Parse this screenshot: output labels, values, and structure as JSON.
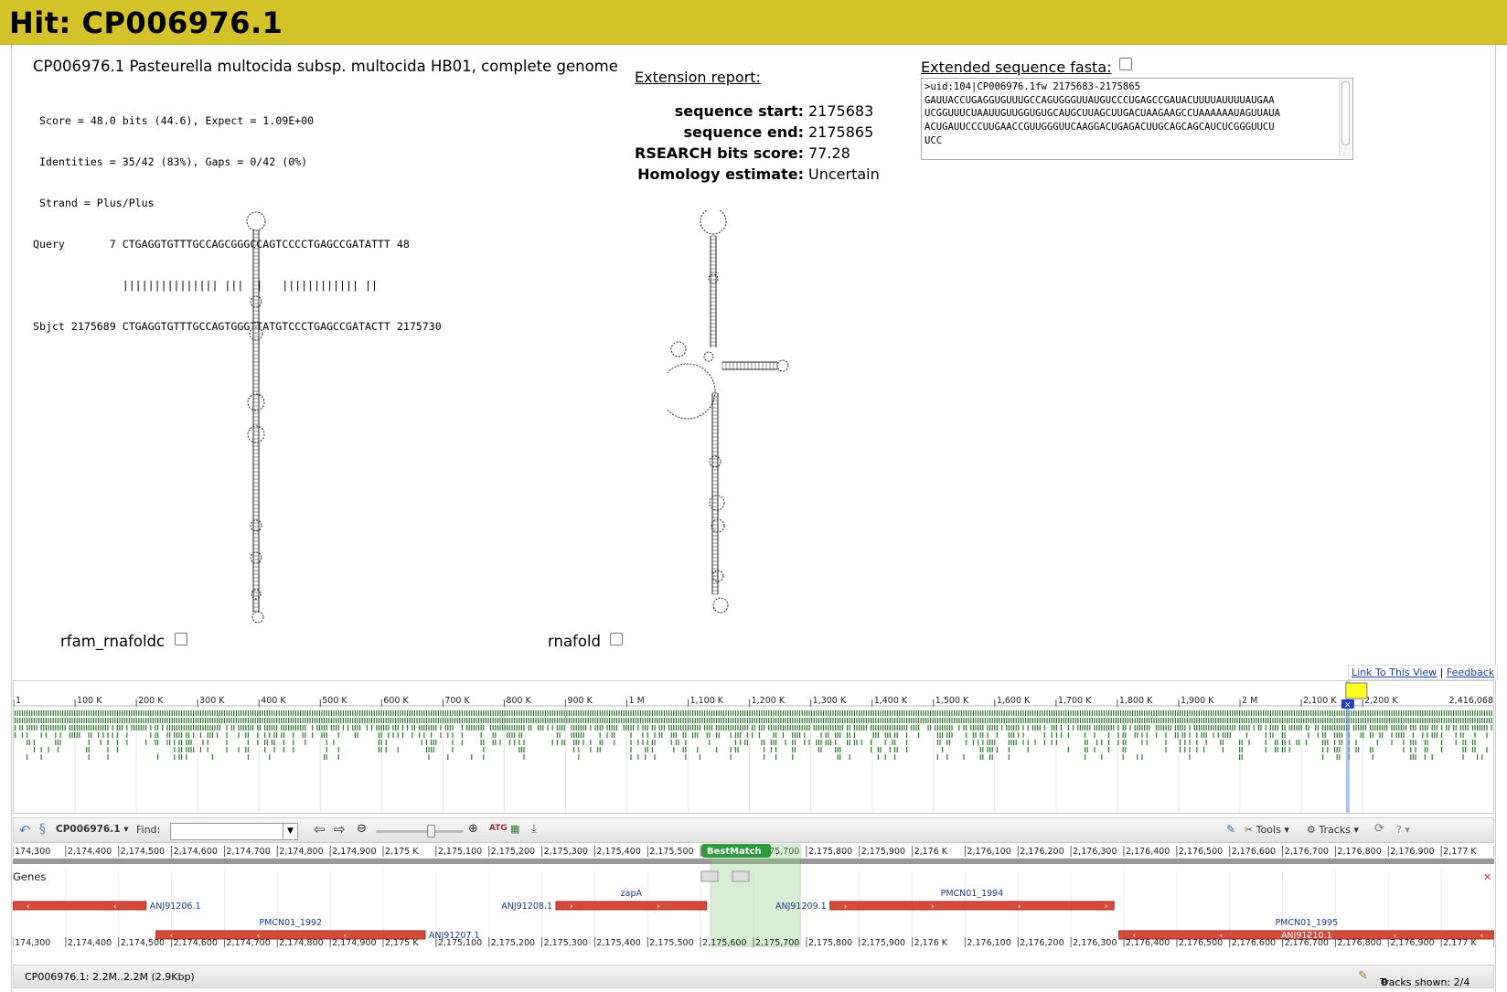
{
  "header": {
    "title": "Hit: CP006976.1"
  },
  "hit": {
    "description": "CP006976.1 Pasteurella multocida subsp. multocida HB01, complete genome",
    "alignment": [
      " Score = 48.0 bits (44.6), Expect = 1.09E+00",
      " Identities = 35/42 (83%), Gaps = 0/42 (0%)",
      " Strand = Plus/Plus",
      "Query       7 CTGAGGTGTTTGCCAGCGGGCCAGTCCCCTGAGCCGATATTT 48",
      "              ||||||||||||||| |||  |   |||||||||||| ||",
      "Sbjct 2175689 CTGAGGTGTTTGCCAGTGGGTTATGTCCCTGAGCCGATACTT 2175730"
    ]
  },
  "extension": {
    "title": "Extension report:",
    "rows": [
      {
        "key": "sequence start:",
        "value": "2175683"
      },
      {
        "key": "sequence end:",
        "value": "2175865"
      },
      {
        "key": "RSEARCH bits score:",
        "value": "77.28"
      },
      {
        "key": "Homology estimate:",
        "value": "Uncertain"
      }
    ]
  },
  "fasta": {
    "title": "Extended sequence fasta:",
    "text": ">uid:104|CP006976.1fw 2175683-2175865\nGAUUACCUGAGGUGUUUGCCAGUGGGUUAUGUCCCUGAGCCGAUACUUUUAUUUUAUGAA\nUCGGUUUCUAAUUGUUGGUGUGCAUGCUUAGCUUGACUAAGAAGCCUAAAAAAUAGUUAUA\nACUGAUUCCCUUGAACCGUUGGGUUCAAGGACUGAGACUUGCAGCAGCAUCUCGGGUUCU\nUCC"
  },
  "structures": [
    {
      "label": "rfam_rnafoldc"
    },
    {
      "label": "rnafold"
    }
  ],
  "links": {
    "link_view": "Link To This View",
    "feedback": "Feedback"
  },
  "overview": {
    "ticks": [
      "1",
      "100 K",
      "200 K",
      "300 K",
      "400 K",
      "500 K",
      "600 K",
      "700 K",
      "800 K",
      "900 K",
      "1 M",
      "1,100 K",
      "1,200 K",
      "1,300 K",
      "1,400 K",
      "1,500 K",
      "1,600 K",
      "1,700 K",
      "1,800 K",
      "1,900 K",
      "2 M",
      "2,100 K",
      "2,200 K"
    ],
    "end_label": "2,416,068",
    "genome_length": 2416068,
    "view_position": 2175700
  },
  "toolbar": {
    "ref": "CP006976.1",
    "find_label": "Find:",
    "tools": "Tools",
    "tracks": "Tracks"
  },
  "detail": {
    "ticks": [
      "174,300",
      "2,174,400",
      "2,174,500",
      "2,174,600",
      "2,174,700",
      "2,174,800",
      "2,174,900",
      "2,175 K",
      "2,175,100",
      "2,175,200",
      "2,175,300",
      "2,175,400",
      "2,175,500",
      "2,175,600",
      "2,175,700",
      "2,175,800",
      "2,175,900",
      "2,176 K",
      "2,176,100",
      "2,176,200",
      "2,176,300",
      "2,176,400",
      "2,176,500",
      "2,176,600",
      "2,176,700",
      "2,176,800",
      "2,176,900",
      "2,177 K",
      "2,1"
    ],
    "bottom_ticks": [
      "174,300",
      "2,174,400",
      "2,174,500",
      "2,174,600",
      "2,174,700",
      "2,174,800",
      "2,174,900",
      "2,175 K",
      "2,175,100",
      "2,175,200",
      "2,175,300",
      "2,175,400",
      "2,175,500",
      "2,175,600",
      "2,175,700",
      "2,175,800",
      "2,175,900",
      "2,176 K",
      "2,176,100",
      "2,176,200",
      "2,176,300",
      "2,176,400",
      "2,176,500",
      "2,176,600",
      "2,176,700",
      "2,176,800",
      "2,176,900",
      "2,177 K",
      "2,1"
    ],
    "view_start": 2174270,
    "view_end": 2177270,
    "best_match_label": "BestMatch",
    "best_match_range": [
      2175683,
      2175865
    ],
    "track_label": "Genes",
    "genes": [
      {
        "start": 2174270,
        "end": 2174540,
        "strand": "-",
        "row": 0,
        "name": "",
        "label": "ANJ91206.1",
        "label_side": "right"
      },
      {
        "start": 2175370,
        "end": 2175675,
        "strand": "+",
        "row": 0,
        "name": "zapA",
        "label": "ANJ91208.1",
        "label_side": "left"
      },
      {
        "start": 2175925,
        "end": 2176500,
        "strand": "+",
        "row": 0,
        "name": "PMCN01_1994",
        "label": "ANJ91209.1",
        "label_side": "left"
      },
      {
        "start": 2174560,
        "end": 2175105,
        "strand": "-",
        "row": 1,
        "name": "PMCN01_1992",
        "label": "ANJ91207.1",
        "label_side": "right"
      },
      {
        "start": 2176510,
        "end": 2177270,
        "strand": "-",
        "row": 1,
        "name": "PMCN01_1995",
        "label": "ANJ91210.1",
        "label_side": "inside"
      }
    ]
  },
  "status": {
    "location": "CP006976.1: 2.2M..2.2M (2.9Kbp)",
    "tracks_shown": "Tracks shown: 2/4"
  }
}
